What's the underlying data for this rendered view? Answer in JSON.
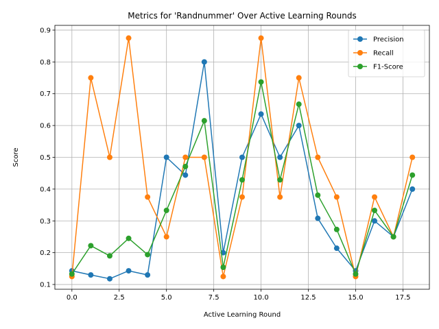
{
  "chart_data": {
    "type": "line",
    "title": "Metrics for 'Randnummer' Over Active Learning Rounds",
    "xlabel": "Active Learning Round",
    "ylabel": "Score",
    "xlim": [
      -0.9,
      18.9
    ],
    "ylim": [
      0.085,
      0.915
    ],
    "xticks": [
      0.0,
      2.5,
      5.0,
      7.5,
      10.0,
      12.5,
      15.0,
      17.5
    ],
    "xtick_labels": [
      "0.0",
      "2.5",
      "5.0",
      "7.5",
      "10.0",
      "12.5",
      "15.0",
      "17.5"
    ],
    "yticks": [
      0.1,
      0.2,
      0.3,
      0.4,
      0.5,
      0.6,
      0.7,
      0.8,
      0.9
    ],
    "ytick_labels": [
      "0.1",
      "0.2",
      "0.3",
      "0.4",
      "0.5",
      "0.6",
      "0.7",
      "0.8",
      "0.9"
    ],
    "grid": true,
    "legend_position": "top-right",
    "x": [
      0,
      1,
      2,
      3,
      4,
      5,
      6,
      7,
      8,
      9,
      10,
      11,
      12,
      13,
      14,
      15,
      16,
      17,
      18
    ],
    "series": [
      {
        "name": "Precision",
        "color": "#1f77b4",
        "values": [
          0.143,
          0.13,
          0.118,
          0.143,
          0.13,
          0.5,
          0.444,
          0.8,
          0.2,
          0.5,
          0.636,
          0.5,
          0.6,
          0.308,
          0.214,
          0.143,
          0.3,
          0.25,
          0.4
        ]
      },
      {
        "name": "Recall",
        "color": "#ff7f0e",
        "values": [
          0.125,
          0.75,
          0.5,
          0.875,
          0.375,
          0.25,
          0.5,
          0.5,
          0.125,
          0.375,
          0.875,
          0.375,
          0.75,
          0.5,
          0.375,
          0.125,
          0.375,
          0.25,
          0.5
        ]
      },
      {
        "name": "F1-Score",
        "color": "#2ca02c",
        "values": [
          0.133,
          0.222,
          0.19,
          0.245,
          0.194,
          0.333,
          0.471,
          0.615,
          0.154,
          0.429,
          0.737,
          0.429,
          0.667,
          0.381,
          0.273,
          0.133,
          0.333,
          0.25,
          0.444
        ]
      }
    ]
  }
}
